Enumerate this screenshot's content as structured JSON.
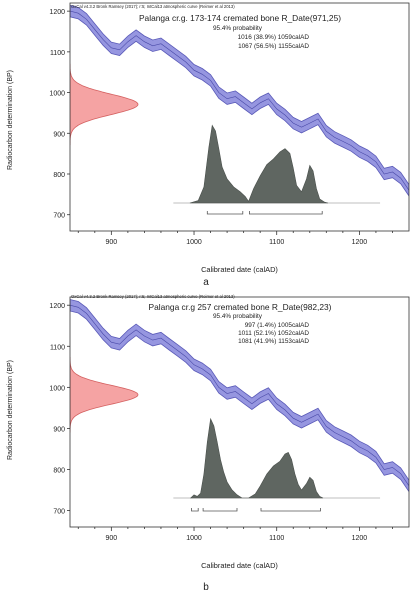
{
  "panels": [
    {
      "caption": "a",
      "credit": "OxCal v4.3.2 Bronk Ramsey (2017); r:5; IntCal13 atmospheric curve (Reimer et al 2013)",
      "title": "Palanga cr.g. 173-174 cremated bone R_Date(971,25)",
      "prob_label": "95.4% probability",
      "ranges": [
        "1016 (38.9%) 1059calAD",
        "1067 (56.5%) 1155calAD"
      ],
      "xlabel": "Calibrated date (calAD)",
      "ylabel": "Radiocarbon determination (BP)",
      "x_ticks": [
        900,
        1000,
        1100,
        1200
      ],
      "y_ticks": [
        700,
        800,
        900,
        1000,
        1100,
        1200
      ]
    },
    {
      "caption": "b",
      "credit": "OxCal v4.3.2 Bronk Ramsey (2017); r:5; IntCal13 atmospheric curve (Reimer et al 2013)",
      "title": "Palanga cr.g 257 cremated bone R_Date(982,23)",
      "prob_label": "95.4% probability",
      "ranges": [
        "997 (1.4%) 1005calAD",
        "1011 (52.1%) 1052calAD",
        "1081 (41.9%) 1153calAD"
      ],
      "xlabel": "Calibrated date (calAD)",
      "ylabel": "Radiocarbon determination (BP)",
      "x_ticks": [
        900,
        1000,
        1100,
        1200
      ],
      "y_ticks": [
        700,
        800,
        900,
        1000,
        1100,
        1200
      ]
    }
  ],
  "chart_data": [
    {
      "type": "area",
      "title": "Palanga cr.g. 173-174 cremated bone R_Date(971,25)",
      "xlabel": "Calibrated date (calAD)",
      "ylabel": "Radiocarbon determination (BP)",
      "xlim": [
        850,
        1260
      ],
      "ylim": [
        660,
        1220
      ],
      "colors": {
        "curve": "#7c7ccf",
        "measurement": "#f08c8c",
        "posterior": "#5f6661",
        "range_bar": "#555555"
      },
      "calibration_curve": {
        "x": [
          850,
          860,
          870,
          880,
          890,
          900,
          910,
          920,
          930,
          940,
          950,
          960,
          970,
          980,
          990,
          1000,
          1010,
          1020,
          1030,
          1040,
          1050,
          1060,
          1070,
          1080,
          1090,
          1100,
          1110,
          1120,
          1130,
          1140,
          1150,
          1160,
          1170,
          1180,
          1190,
          1200,
          1210,
          1220,
          1230,
          1240,
          1250,
          1260
        ],
        "y": [
          1200,
          1195,
          1180,
          1155,
          1130,
          1110,
          1105,
          1125,
          1140,
          1125,
          1115,
          1120,
          1105,
          1090,
          1075,
          1055,
          1045,
          1030,
          1000,
          985,
          990,
          975,
          960,
          975,
          985,
          960,
          945,
          925,
          915,
          925,
          935,
          905,
          890,
          880,
          870,
          855,
          845,
          830,
          800,
          805,
          790,
          760
        ],
        "band_halfwidth": 14
      },
      "measurement": {
        "mean": 971,
        "sigma": 25
      },
      "posterior": {
        "x": [
          995,
          1005,
          1012,
          1018,
          1022,
          1026,
          1030,
          1034,
          1040,
          1048,
          1056,
          1062,
          1066,
          1072,
          1080,
          1088,
          1096,
          1104,
          1110,
          1116,
          1120,
          1124,
          1130,
          1136,
          1140,
          1144,
          1148,
          1152,
          1158,
          1162
        ],
        "y": [
          0.0,
          0.03,
          0.2,
          0.7,
          0.97,
          0.9,
          0.68,
          0.45,
          0.3,
          0.2,
          0.14,
          0.08,
          0.02,
          0.18,
          0.34,
          0.48,
          0.55,
          0.64,
          0.68,
          0.62,
          0.44,
          0.22,
          0.14,
          0.3,
          0.47,
          0.4,
          0.18,
          0.05,
          0.01,
          0.0
        ]
      },
      "hpd_ranges": [
        [
          1016,
          1059
        ],
        [
          1067,
          1155
        ]
      ]
    },
    {
      "type": "area",
      "title": "Palanga cr.g 257 cremated bone R_Date(982,23)",
      "xlabel": "Calibrated date (calAD)",
      "ylabel": "Radiocarbon determination (BP)",
      "xlim": [
        850,
        1260
      ],
      "ylim": [
        660,
        1220
      ],
      "colors": {
        "curve": "#7c7ccf",
        "measurement": "#f08c8c",
        "posterior": "#5f6661",
        "range_bar": "#555555"
      },
      "calibration_curve": {
        "x": [
          850,
          860,
          870,
          880,
          890,
          900,
          910,
          920,
          930,
          940,
          950,
          960,
          970,
          980,
          990,
          1000,
          1010,
          1020,
          1030,
          1040,
          1050,
          1060,
          1070,
          1080,
          1090,
          1100,
          1110,
          1120,
          1130,
          1140,
          1150,
          1160,
          1170,
          1180,
          1190,
          1200,
          1210,
          1220,
          1230,
          1240,
          1250,
          1260
        ],
        "y": [
          1200,
          1195,
          1180,
          1155,
          1130,
          1110,
          1105,
          1125,
          1140,
          1125,
          1115,
          1120,
          1105,
          1090,
          1075,
          1055,
          1045,
          1030,
          1000,
          985,
          990,
          975,
          960,
          975,
          985,
          960,
          945,
          925,
          915,
          925,
          935,
          905,
          890,
          880,
          870,
          855,
          845,
          830,
          800,
          805,
          790,
          760
        ],
        "band_halfwidth": 14
      },
      "measurement": {
        "mean": 982,
        "sigma": 23
      },
      "posterior": {
        "x": [
          996,
          1000,
          1004,
          1008,
          1012,
          1016,
          1020,
          1024,
          1028,
          1032,
          1036,
          1040,
          1046,
          1052,
          1058,
          1066,
          1074,
          1080,
          1088,
          1096,
          1104,
          1110,
          1114,
          1118,
          1122,
          1126,
          1130,
          1136,
          1140,
          1144,
          1148,
          1152,
          1156
        ],
        "y": [
          0.0,
          0.04,
          0.02,
          0.06,
          0.3,
          0.7,
          0.99,
          0.9,
          0.7,
          0.48,
          0.32,
          0.2,
          0.1,
          0.04,
          0.0,
          0.0,
          0.05,
          0.15,
          0.3,
          0.4,
          0.46,
          0.55,
          0.57,
          0.48,
          0.3,
          0.17,
          0.1,
          0.18,
          0.26,
          0.22,
          0.08,
          0.02,
          0.0
        ]
      },
      "hpd_ranges": [
        [
          997,
          1005
        ],
        [
          1011,
          1052
        ],
        [
          1081,
          1153
        ]
      ]
    }
  ]
}
